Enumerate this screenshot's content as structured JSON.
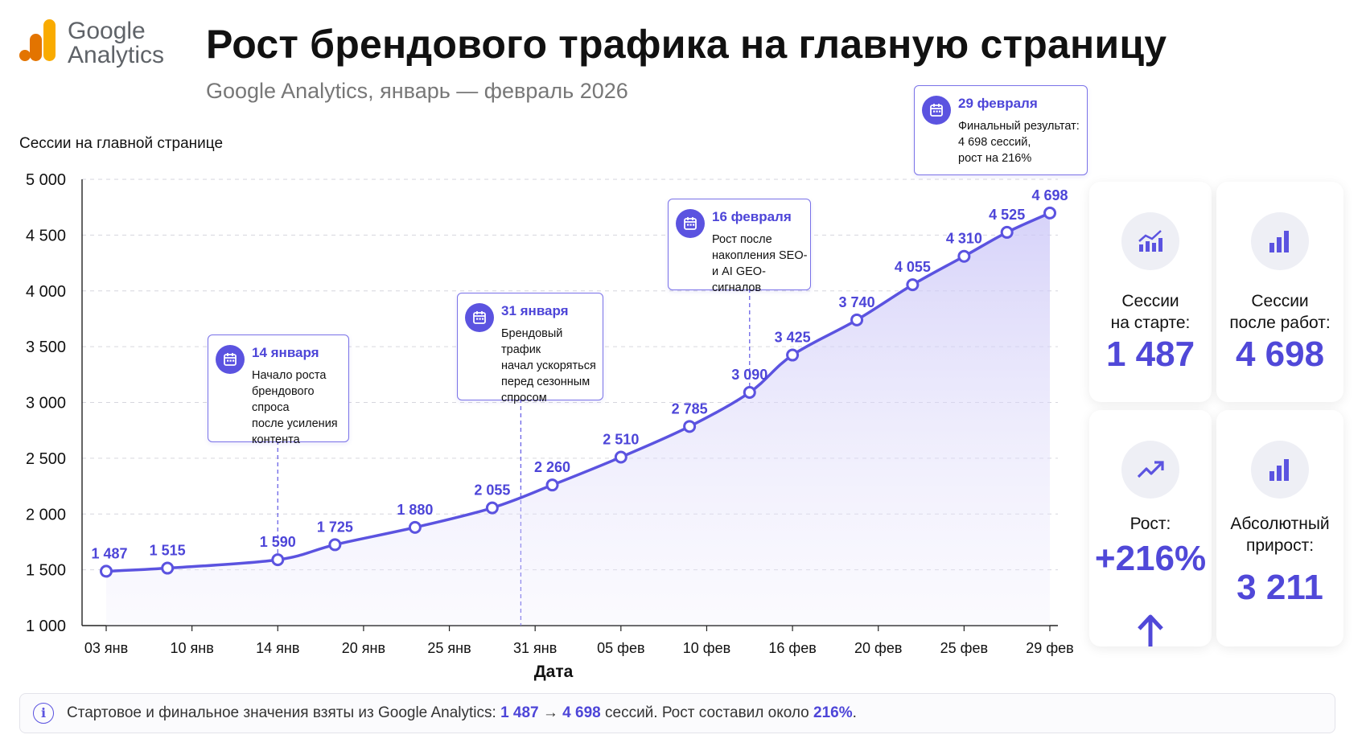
{
  "logo": {
    "line1": "Google",
    "line2": "Analytics",
    "bar_colors": [
      "#f9ab00",
      "#e37400",
      "#e37400"
    ]
  },
  "header": {
    "title": "Рост брендового трафика на главную страницу",
    "subtitle": "Google Analytics, январь — февраль 2026"
  },
  "colors": {
    "accent": "#5b53e0",
    "accent_text": "#4d45d8",
    "fill": "#e9e7fb"
  },
  "chart_data": {
    "type": "line",
    "ylabel": "Сессии на главной странице",
    "xlabel": "Дата",
    "ylim": [
      1000,
      5000
    ],
    "y_ticks": [
      "1 000",
      "1 500",
      "2 000",
      "2 500",
      "3 000",
      "3 500",
      "4 000",
      "4 500",
      "5 000"
    ],
    "y_tick_values": [
      1000,
      1500,
      2000,
      2500,
      3000,
      3500,
      4000,
      4500,
      5000
    ],
    "x_ticks": [
      "03 янв",
      "10 янв",
      "14 янв",
      "20 янв",
      "25 янв",
      "31 янв",
      "05 фев",
      "10 фев",
      "16 фев",
      "20 фев",
      "25 фев",
      "29 фев"
    ],
    "x_tick_dates": [
      "2026-01-03",
      "2026-01-10",
      "2026-01-14",
      "2026-01-20",
      "2026-01-25",
      "2026-01-31",
      "2026-02-05",
      "2026-02-10",
      "2026-02-16",
      "2026-02-20",
      "2026-02-25",
      "2026-02-29"
    ],
    "grid": true,
    "area_fill": true,
    "points": [
      {
        "x": "2026-01-03",
        "y": 1487,
        "label": "1 487"
      },
      {
        "x": "2026-01-08",
        "y": 1515,
        "label": "1 515"
      },
      {
        "x": "2026-01-14",
        "y": 1590,
        "label": "1 590"
      },
      {
        "x": "2026-01-18",
        "y": 1725,
        "label": "1 725"
      },
      {
        "x": "2026-01-23",
        "y": 1880,
        "label": "1 880"
      },
      {
        "x": "2026-01-28",
        "y": 2055,
        "label": "2 055"
      },
      {
        "x": "2026-02-01",
        "y": 2260,
        "label": "2 260"
      },
      {
        "x": "2026-02-05",
        "y": 2510,
        "label": "2 510"
      },
      {
        "x": "2026-02-09",
        "y": 2785,
        "label": "2 785"
      },
      {
        "x": "2026-02-13",
        "y": 3090,
        "label": "3 090"
      },
      {
        "x": "2026-02-16",
        "y": 3425,
        "label": "3 425"
      },
      {
        "x": "2026-02-19",
        "y": 3740,
        "label": "3 740"
      },
      {
        "x": "2026-02-22",
        "y": 4055,
        "label": "4 055"
      },
      {
        "x": "2026-02-25",
        "y": 4310,
        "label": "4 310"
      },
      {
        "x": "2026-02-27",
        "y": 4525,
        "label": "4 525"
      },
      {
        "x": "2026-02-29",
        "y": 4698,
        "label": "4 698"
      }
    ],
    "annotations": [
      {
        "date": "14 января",
        "text_lines": [
          "Начало роста",
          "брендового спроса",
          "после усиления",
          "контента"
        ],
        "at": "2026-01-14"
      },
      {
        "date": "31 января",
        "text_lines": [
          "Брендовый трафик",
          "начал ускоряться",
          "перед сезонным",
          "спросом"
        ],
        "at": "2026-01-30"
      },
      {
        "date": "16 февраля",
        "text_lines": [
          "Рост после",
          "накопления SEO-",
          "и AI GEO-сигналов"
        ],
        "at": "2026-02-13"
      },
      {
        "date": "29 февраля",
        "text_lines": [
          "Финальный результат:",
          "4 698 сессий,",
          "рост на 216%"
        ],
        "at": "2026-02-29"
      }
    ]
  },
  "kpi": {
    "start": {
      "label_lines": [
        "Сессии",
        "на старте:"
      ],
      "value": "1 487",
      "icon": "trend-chart-icon"
    },
    "after": {
      "label_lines": [
        "Сессии",
        "после работ:"
      ],
      "value": "4 698",
      "icon": "bar-chart-icon"
    },
    "growth": {
      "label_lines": [
        "Рост:"
      ],
      "value": "+216%",
      "icon": "trending-up-icon"
    },
    "absolute": {
      "label_lines": [
        "Абсолютный",
        "прирост:"
      ],
      "value": "3 211",
      "icon": "bar-chart-icon"
    }
  },
  "footer": {
    "text_before": "Стартовое и финальное значения взяты из Google Analytics: ",
    "start": "1 487",
    "arrow": " → ",
    "end": "4 698",
    "text_middle": " сессий. Рост составил около ",
    "pct": "216%",
    "text_after": "."
  }
}
